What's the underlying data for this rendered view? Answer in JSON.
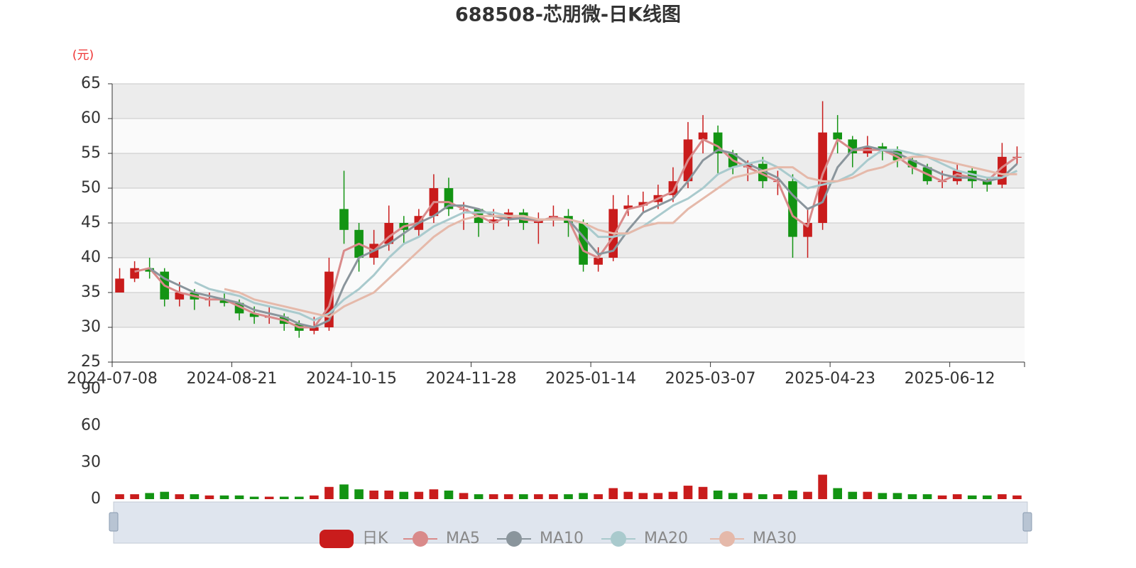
{
  "chart_data": [
    {
      "type": "candlestick",
      "title": "688508-芯朋微-日K线图",
      "y_unit": "(元)",
      "categories": [
        "2024-07-08",
        null,
        null,
        null,
        null,
        null,
        null,
        null,
        "2024-08-21",
        null,
        null,
        null,
        null,
        null,
        null,
        null,
        "2024-10-15",
        null,
        null,
        null,
        null,
        null,
        null,
        null,
        "2024-11-28",
        null,
        null,
        null,
        null,
        null,
        null,
        null,
        "2025-01-14",
        null,
        null,
        null,
        null,
        null,
        null,
        null,
        "2025-03-07",
        null,
        null,
        null,
        null,
        null,
        null,
        null,
        "2025-04-23",
        null,
        null,
        null,
        null,
        null,
        null,
        null,
        "2025-06-12",
        null,
        null,
        null,
        null
      ],
      "ylim": [
        25,
        65
      ],
      "yticks": [
        25,
        30,
        35,
        40,
        45,
        50,
        55,
        60,
        65
      ],
      "grid": true,
      "legend": "bottom",
      "series": [
        {
          "name": "日K",
          "up_color": "#c91c1c",
          "down_color": "#139413",
          "values": [
            [
              35,
              37,
              35,
              38.5
            ],
            [
              37,
              38.5,
              36.5,
              39.5
            ],
            [
              38.5,
              38,
              37,
              40
            ],
            [
              38,
              34,
              33,
              38.5
            ],
            [
              34,
              35,
              33,
              36.5
            ],
            [
              35,
              34,
              32.5,
              35.5
            ],
            [
              34,
              34,
              33,
              35
            ],
            [
              34,
              33.5,
              33,
              35
            ],
            [
              33.5,
              32,
              31,
              34
            ],
            [
              32,
              31.5,
              30.5,
              33
            ],
            [
              31.5,
              31.5,
              30.5,
              33
            ],
            [
              31.5,
              30.5,
              29.5,
              32
            ],
            [
              30.5,
              29.5,
              28.5,
              31
            ],
            [
              29.5,
              30,
              29,
              31.5
            ],
            [
              30,
              38,
              29.5,
              40
            ],
            [
              47,
              44,
              42,
              52.5
            ],
            [
              44,
              40,
              38,
              45
            ],
            [
              40,
              42,
              39,
              44
            ],
            [
              42,
              45,
              41,
              47.5
            ],
            [
              45,
              44,
              42,
              46
            ],
            [
              44,
              46,
              43,
              47
            ],
            [
              46,
              50,
              45,
              52
            ],
            [
              50,
              47,
              46,
              51.5
            ],
            [
              47,
              47,
              44,
              48
            ],
            [
              47,
              45,
              43,
              47
            ],
            [
              45,
              45.5,
              44,
              47
            ],
            [
              45.5,
              46.5,
              44.5,
              47
            ],
            [
              46.5,
              45,
              44,
              47
            ],
            [
              45,
              45.5,
              42,
              46.5
            ],
            [
              45.5,
              46,
              44.5,
              47.5
            ],
            [
              46,
              45,
              43,
              47
            ],
            [
              45,
              39,
              38,
              45.5
            ],
            [
              39,
              40,
              38,
              41.5
            ],
            [
              40,
              47,
              39.5,
              49
            ],
            [
              47,
              47.5,
              46,
              49
            ],
            [
              47.5,
              48,
              46.5,
              49.5
            ],
            [
              48,
              49,
              47,
              50.5
            ],
            [
              49,
              51,
              48,
              53
            ],
            [
              51,
              57,
              50,
              59.5
            ],
            [
              57,
              58,
              55,
              60.5
            ],
            [
              58,
              55,
              52,
              59
            ],
            [
              55,
              53,
              52,
              55.5
            ],
            [
              53,
              53.5,
              51,
              54
            ],
            [
              53.5,
              51,
              50,
              54.5
            ],
            [
              51,
              51,
              49,
              52.5
            ],
            [
              51,
              43,
              40,
              52
            ],
            [
              43,
              45,
              40,
              47
            ],
            [
              45,
              58,
              44,
              62.5
            ],
            [
              58,
              57,
              55,
              60.5
            ],
            [
              57,
              55,
              53,
              57.5
            ],
            [
              55,
              56,
              54.5,
              57.5
            ],
            [
              56,
              55.5,
              54,
              56.5
            ],
            [
              55.5,
              54,
              53,
              56
            ],
            [
              54,
              53,
              52,
              54.5
            ],
            [
              53,
              51,
              50.5,
              53.5
            ],
            [
              51,
              51,
              50,
              52.5
            ],
            [
              51,
              52.5,
              50.5,
              53.5
            ],
            [
              52.5,
              51,
              50,
              53
            ],
            [
              51,
              50.5,
              49.5,
              51.5
            ],
            [
              50.5,
              54.5,
              50,
              56.5
            ],
            [
              54.5,
              54.5,
              53.5,
              56
            ]
          ]
        },
        {
          "name": "MA5",
          "color": "#d98a8a",
          "values": [
            null,
            38,
            38.5,
            36,
            35,
            34.5,
            34,
            34,
            33,
            32,
            31.5,
            31,
            30,
            30,
            33,
            41,
            42,
            41,
            43,
            44.5,
            45,
            48,
            48,
            47,
            46,
            45,
            46,
            45.5,
            45.3,
            45.8,
            45.5,
            41,
            40,
            43,
            47,
            47.5,
            48.5,
            49.5,
            54,
            57,
            56,
            54,
            53,
            52,
            51,
            46,
            44.5,
            52,
            57,
            55.5,
            55.5,
            55.5,
            54.5,
            53,
            52,
            51,
            52,
            51.5,
            51,
            53,
            54.5
          ]
        },
        {
          "name": "MA10",
          "color": "#8a959c",
          "values": [
            null,
            null,
            38.5,
            37,
            36,
            35,
            34.5,
            34,
            33.5,
            32.5,
            32,
            31.5,
            30.5,
            30,
            31,
            36,
            40,
            41,
            42,
            43.5,
            45,
            46,
            47.5,
            47.5,
            47,
            46,
            45.5,
            45.7,
            45.5,
            45.5,
            45.5,
            43,
            40.5,
            41,
            44,
            46.5,
            47.5,
            48.5,
            51,
            54,
            55.5,
            55,
            53.5,
            52.5,
            51.5,
            49,
            47,
            48,
            53,
            55.5,
            56,
            55.5,
            55,
            54,
            53,
            52,
            51.5,
            51.5,
            51,
            51.5,
            53.5
          ]
        },
        {
          "name": "MA20",
          "color": "#a9cacd",
          "values": [
            null,
            null,
            null,
            null,
            null,
            36.5,
            35.5,
            35,
            34.5,
            33.5,
            33,
            32.5,
            32,
            31,
            32,
            34,
            35.5,
            37.5,
            40,
            42,
            43,
            44.5,
            45.5,
            46.5,
            46.5,
            46.5,
            46,
            46,
            45.5,
            45.5,
            45.5,
            45,
            43,
            43,
            43.5,
            44.5,
            46,
            47.5,
            48.5,
            50,
            52,
            53,
            53.5,
            54,
            53,
            51.5,
            50,
            50.5,
            51,
            52,
            54,
            55.5,
            55.5,
            55,
            54.5,
            53.5,
            52.5,
            52,
            51.5,
            51.5,
            52.5
          ]
        },
        {
          "name": "MA30",
          "color": "#e5b9aa",
          "values": [
            null,
            null,
            null,
            null,
            null,
            null,
            null,
            35.5,
            35,
            34,
            33.5,
            33,
            32.5,
            32,
            31.5,
            33,
            34,
            35,
            37,
            39,
            41,
            43,
            44.5,
            45.5,
            46,
            46,
            46,
            46,
            45.5,
            45.5,
            45.5,
            45,
            44,
            43.5,
            43.5,
            44.5,
            45,
            45,
            47,
            48.5,
            50,
            51.5,
            52,
            52.5,
            53,
            53,
            51.5,
            51,
            51,
            51.5,
            52.5,
            53,
            54,
            54.5,
            54.5,
            54,
            53.5,
            53,
            52.5,
            52,
            52
          ]
        }
      ]
    },
    {
      "type": "bar",
      "ylim": [
        0,
        90
      ],
      "yticks": [
        0,
        30,
        60,
        90
      ],
      "values": [
        4,
        4,
        5,
        6,
        4,
        4,
        3,
        3,
        3,
        2,
        2,
        2,
        2,
        3,
        10,
        12,
        8,
        7,
        7,
        6,
        6,
        8,
        7,
        5,
        4,
        4,
        4,
        4,
        4,
        4,
        4,
        5,
        4,
        9,
        6,
        5,
        5,
        6,
        11,
        10,
        7,
        5,
        5,
        4,
        4,
        7,
        6,
        20,
        9,
        6,
        6,
        5,
        5,
        4,
        4,
        3,
        4,
        3,
        3,
        4,
        3
      ]
    }
  ]
}
